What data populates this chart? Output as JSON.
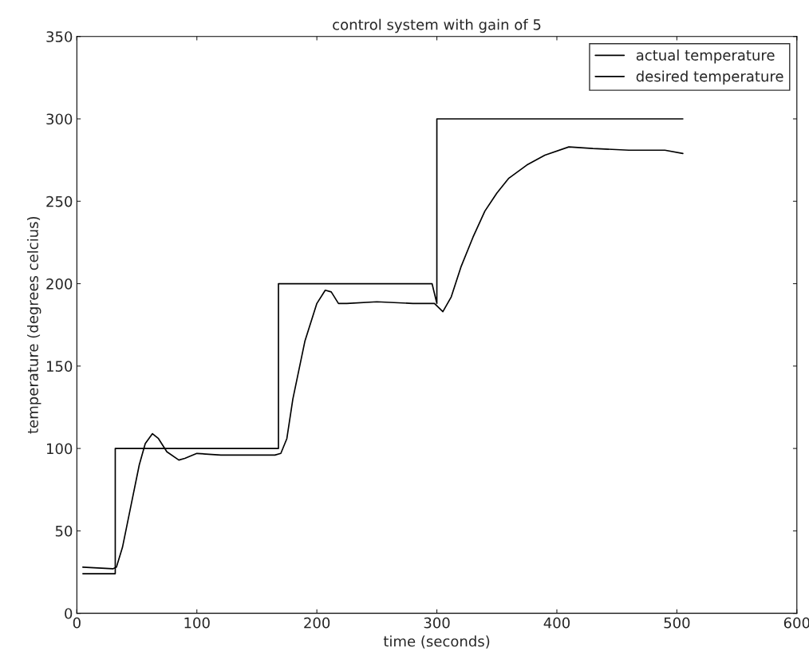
{
  "chart_data": {
    "type": "line",
    "title": "control system with gain of 5",
    "xlabel": "time (seconds)",
    "ylabel": "temperature (degrees celcius)",
    "xlim": [
      0,
      600
    ],
    "xticks": [
      0,
      100,
      200,
      300,
      400,
      500,
      600
    ],
    "ylim": [
      0,
      350
    ],
    "yticks": [
      0,
      50,
      100,
      150,
      200,
      250,
      300,
      350
    ],
    "grid": false,
    "legend": "top right",
    "line_style": "solid",
    "marker": "none",
    "series": [
      {
        "name": "actual temperature",
        "color": "#000000",
        "x": [
          5,
          30,
          33,
          38,
          45,
          52,
          57,
          63,
          68,
          75,
          85,
          90,
          100,
          120,
          150,
          165,
          170,
          175,
          180,
          190,
          200,
          207,
          212,
          218,
          225,
          250,
          280,
          298,
          305,
          312,
          320,
          330,
          340,
          350,
          360,
          375,
          390,
          410,
          430,
          460,
          490,
          505
        ],
        "values": [
          28,
          27,
          28,
          40,
          65,
          90,
          103,
          109,
          106,
          98,
          93,
          94,
          97,
          96,
          96,
          96,
          97,
          106,
          130,
          165,
          188,
          196,
          195,
          188,
          188,
          189,
          188,
          188,
          183,
          192,
          210,
          228,
          244,
          255,
          264,
          272,
          278,
          283,
          282,
          281,
          281,
          279
        ]
      },
      {
        "name": "desired temperature",
        "color": "#000000",
        "x": [
          5,
          32,
          32,
          168,
          168,
          296,
          300,
          300,
          505
        ],
        "values": [
          24,
          24,
          100,
          100,
          200,
          200,
          188,
          300,
          300
        ]
      }
    ]
  }
}
